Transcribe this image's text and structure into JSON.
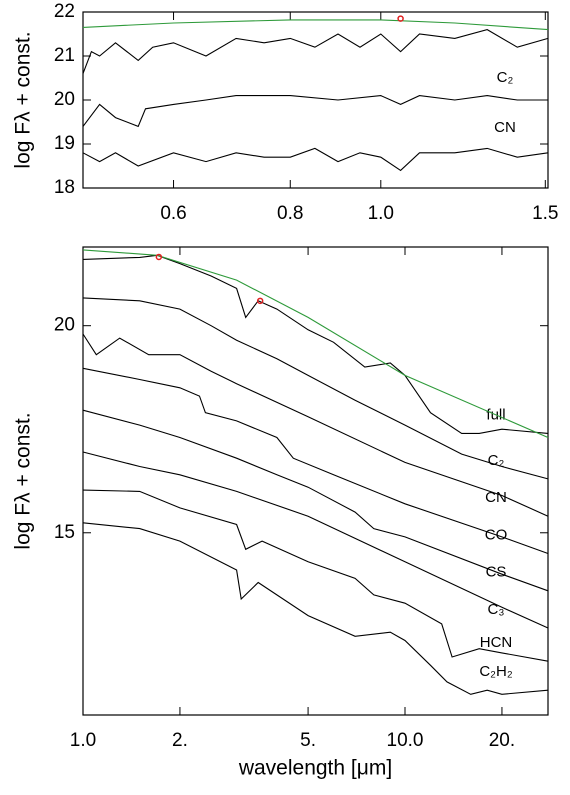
{
  "chart_data": [
    {
      "type": "line",
      "ylabel": "log Fλ + const.",
      "xscale": "log",
      "xlim": [
        0.48,
        1.51
      ],
      "ylim": [
        18,
        22
      ],
      "xticks": [
        0.6,
        0.8,
        {
          "value": 1,
          "label": "1.0"
        },
        1.5
      ],
      "yticks": [
        18,
        19,
        20,
        21,
        22
      ],
      "annotations": [
        "C₂",
        "CN"
      ],
      "series": [
        {
          "color": "#000000",
          "x": [
            0.48,
            0.49,
            0.5,
            0.52,
            0.55,
            0.57,
            0.6,
            0.65,
            0.7,
            0.75,
            0.8,
            0.85,
            0.9,
            0.95,
            1.0,
            1.05,
            1.1,
            1.2,
            1.3,
            1.4,
            1.51
          ],
          "values": [
            20.6,
            21.1,
            21.0,
            21.3,
            20.9,
            21.2,
            21.3,
            21.0,
            21.4,
            21.3,
            21.4,
            21.2,
            21.5,
            21.2,
            21.5,
            21.1,
            21.5,
            21.4,
            21.6,
            21.2,
            21.4
          ]
        },
        {
          "color": "#000000",
          "x": [
            0.48,
            0.5,
            0.52,
            0.55,
            0.56,
            0.6,
            0.65,
            0.7,
            0.8,
            0.9,
            1.0,
            1.05,
            1.1,
            1.2,
            1.3,
            1.4,
            1.51
          ],
          "values": [
            19.4,
            19.9,
            19.6,
            19.4,
            19.8,
            19.9,
            20.0,
            20.1,
            20.1,
            20.0,
            20.1,
            19.9,
            20.1,
            20.0,
            20.1,
            20.0,
            20.0
          ]
        },
        {
          "color": "#000000",
          "x": [
            0.48,
            0.5,
            0.52,
            0.55,
            0.6,
            0.65,
            0.7,
            0.75,
            0.8,
            0.85,
            0.9,
            0.95,
            1.0,
            1.05,
            1.1,
            1.2,
            1.3,
            1.4,
            1.51
          ],
          "values": [
            18.8,
            18.6,
            18.8,
            18.5,
            18.8,
            18.6,
            18.8,
            18.7,
            18.7,
            18.9,
            18.6,
            18.8,
            18.7,
            18.4,
            18.8,
            18.8,
            18.9,
            18.7,
            18.8
          ]
        },
        {
          "color": "#2e9a3a",
          "x": [
            0.48,
            0.6,
            0.8,
            1.0,
            1.2,
            1.51
          ],
          "values": [
            21.65,
            21.75,
            21.82,
            21.82,
            21.75,
            21.6
          ]
        }
      ],
      "markers": {
        "color": "#e02020",
        "x": [
          1.05
        ],
        "values": [
          21.85
        ]
      }
    },
    {
      "type": "line",
      "ylabel": "log Fλ + const.",
      "xlabel": "wavelength [μm]",
      "xscale": "log",
      "xlim": [
        1,
        27.8
      ],
      "ylim": [
        10.6,
        21.9
      ],
      "xticks": [
        {
          "value": 1,
          "label": "1.0"
        },
        {
          "value": 2,
          "label": "2."
        },
        {
          "value": 5,
          "label": "5."
        },
        {
          "value": 10,
          "label": "10.0"
        },
        {
          "value": 20,
          "label": "20."
        }
      ],
      "yticks": [
        15,
        20
      ],
      "series": [
        {
          "name": "full",
          "color": "#000000",
          "x": [
            1,
            1.5,
            1.7,
            2,
            2.5,
            3,
            3.2,
            3.5,
            4,
            5,
            6,
            7.5,
            9,
            10,
            12,
            15,
            17,
            20,
            27.8
          ],
          "values": [
            21.6,
            21.65,
            21.7,
            21.5,
            21.2,
            20.9,
            20.2,
            20.6,
            20.4,
            19.9,
            19.6,
            19.0,
            19.1,
            18.8,
            17.9,
            17.4,
            17.4,
            17.5,
            17.4
          ]
        },
        {
          "name": "C₂",
          "color": "#000000",
          "x": [
            1,
            1.5,
            2,
            2.5,
            3,
            4,
            5,
            7,
            10,
            15,
            20,
            27.8
          ],
          "values": [
            20.67,
            20.6,
            20.4,
            20.0,
            19.65,
            19.2,
            18.8,
            18.2,
            17.6,
            16.9,
            16.6,
            16.3
          ]
        },
        {
          "name": "CN",
          "color": "#000000",
          "x": [
            1,
            1.1,
            1.3,
            1.6,
            2,
            2.5,
            3,
            5,
            10,
            20,
            27.8
          ],
          "values": [
            19.8,
            19.3,
            19.7,
            19.3,
            19.3,
            18.9,
            18.6,
            17.8,
            16.7,
            15.9,
            15.4
          ]
        },
        {
          "name": "CO",
          "color": "#000000",
          "x": [
            1,
            1.5,
            2,
            2.3,
            2.4,
            3,
            4,
            4.5,
            6,
            10,
            20,
            27.8
          ],
          "values": [
            18.97,
            18.7,
            18.5,
            18.3,
            17.9,
            17.7,
            17.3,
            16.8,
            16.4,
            15.7,
            14.9,
            14.5
          ]
        },
        {
          "name": "CS",
          "color": "#000000",
          "x": [
            1,
            1.5,
            2,
            3,
            4,
            5,
            7,
            8,
            10,
            20,
            27.8
          ],
          "values": [
            17.96,
            17.6,
            17.3,
            16.8,
            16.4,
            16.1,
            15.5,
            15.1,
            14.9,
            14.0,
            13.6
          ]
        },
        {
          "name": "C₃",
          "color": "#000000",
          "x": [
            1,
            1.5,
            2,
            3,
            5,
            10,
            20,
            27.8
          ],
          "values": [
            16.95,
            16.6,
            16.4,
            16.0,
            15.4,
            14.3,
            13.2,
            12.7
          ]
        },
        {
          "name": "HCN",
          "color": "#000000",
          "x": [
            1,
            1.5,
            2,
            3,
            3.2,
            3.6,
            5,
            7,
            8,
            10,
            13,
            14,
            17,
            20,
            27.8
          ],
          "values": [
            16.03,
            16.0,
            15.6,
            15.2,
            14.6,
            14.8,
            14.3,
            13.9,
            13.5,
            13.3,
            12.8,
            12.0,
            12.2,
            12.1,
            11.9
          ]
        },
        {
          "name": "C₂H₂",
          "color": "#000000",
          "x": [
            1,
            1.5,
            2,
            3,
            3.1,
            3.5,
            5,
            7,
            9,
            10,
            12,
            13.5,
            16,
            18,
            20,
            27.8
          ],
          "values": [
            15.24,
            15.1,
            14.8,
            14.1,
            13.4,
            13.8,
            13.0,
            12.5,
            12.6,
            12.4,
            11.8,
            11.4,
            11.1,
            11.2,
            11.1,
            11.2
          ]
        },
        {
          "color": "#2e9a3a",
          "x": [
            1,
            1.7,
            3,
            5,
            10,
            27.8
          ],
          "values": [
            21.83,
            21.7,
            21.1,
            20.2,
            18.8,
            17.3
          ]
        }
      ],
      "markers": {
        "color": "#e02020",
        "x": [
          1.72,
          3.55
        ],
        "values": [
          21.66,
          20.6
        ]
      }
    }
  ]
}
